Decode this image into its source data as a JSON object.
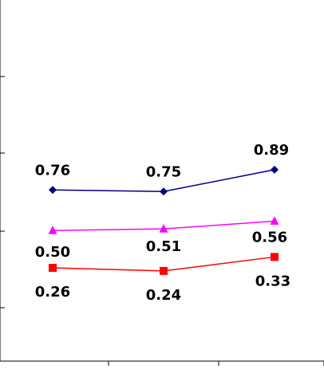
{
  "chart_data": {
    "type": "line",
    "title": "",
    "xlabel": "",
    "ylabel": "",
    "categories": [
      "",
      "",
      ""
    ],
    "ylim": [
      -0.3,
      1.3
    ],
    "grid": false,
    "series": [
      {
        "values": [
          0.76,
          0.75,
          0.89
        ],
        "labels": [
          "0.76",
          "0.75",
          "0.89"
        ],
        "color": "#000080",
        "marker": "diamond"
      },
      {
        "values": [
          0.5,
          0.51,
          0.56
        ],
        "labels": [
          "0.50",
          "0.51",
          "0.56"
        ],
        "color": "#FF00FF",
        "marker": "triangle"
      },
      {
        "values": [
          0.26,
          0.24,
          0.33
        ],
        "labels": [
          "0.26",
          "0.24",
          "0.33"
        ],
        "color": "#FF0000",
        "marker": "square"
      }
    ]
  }
}
